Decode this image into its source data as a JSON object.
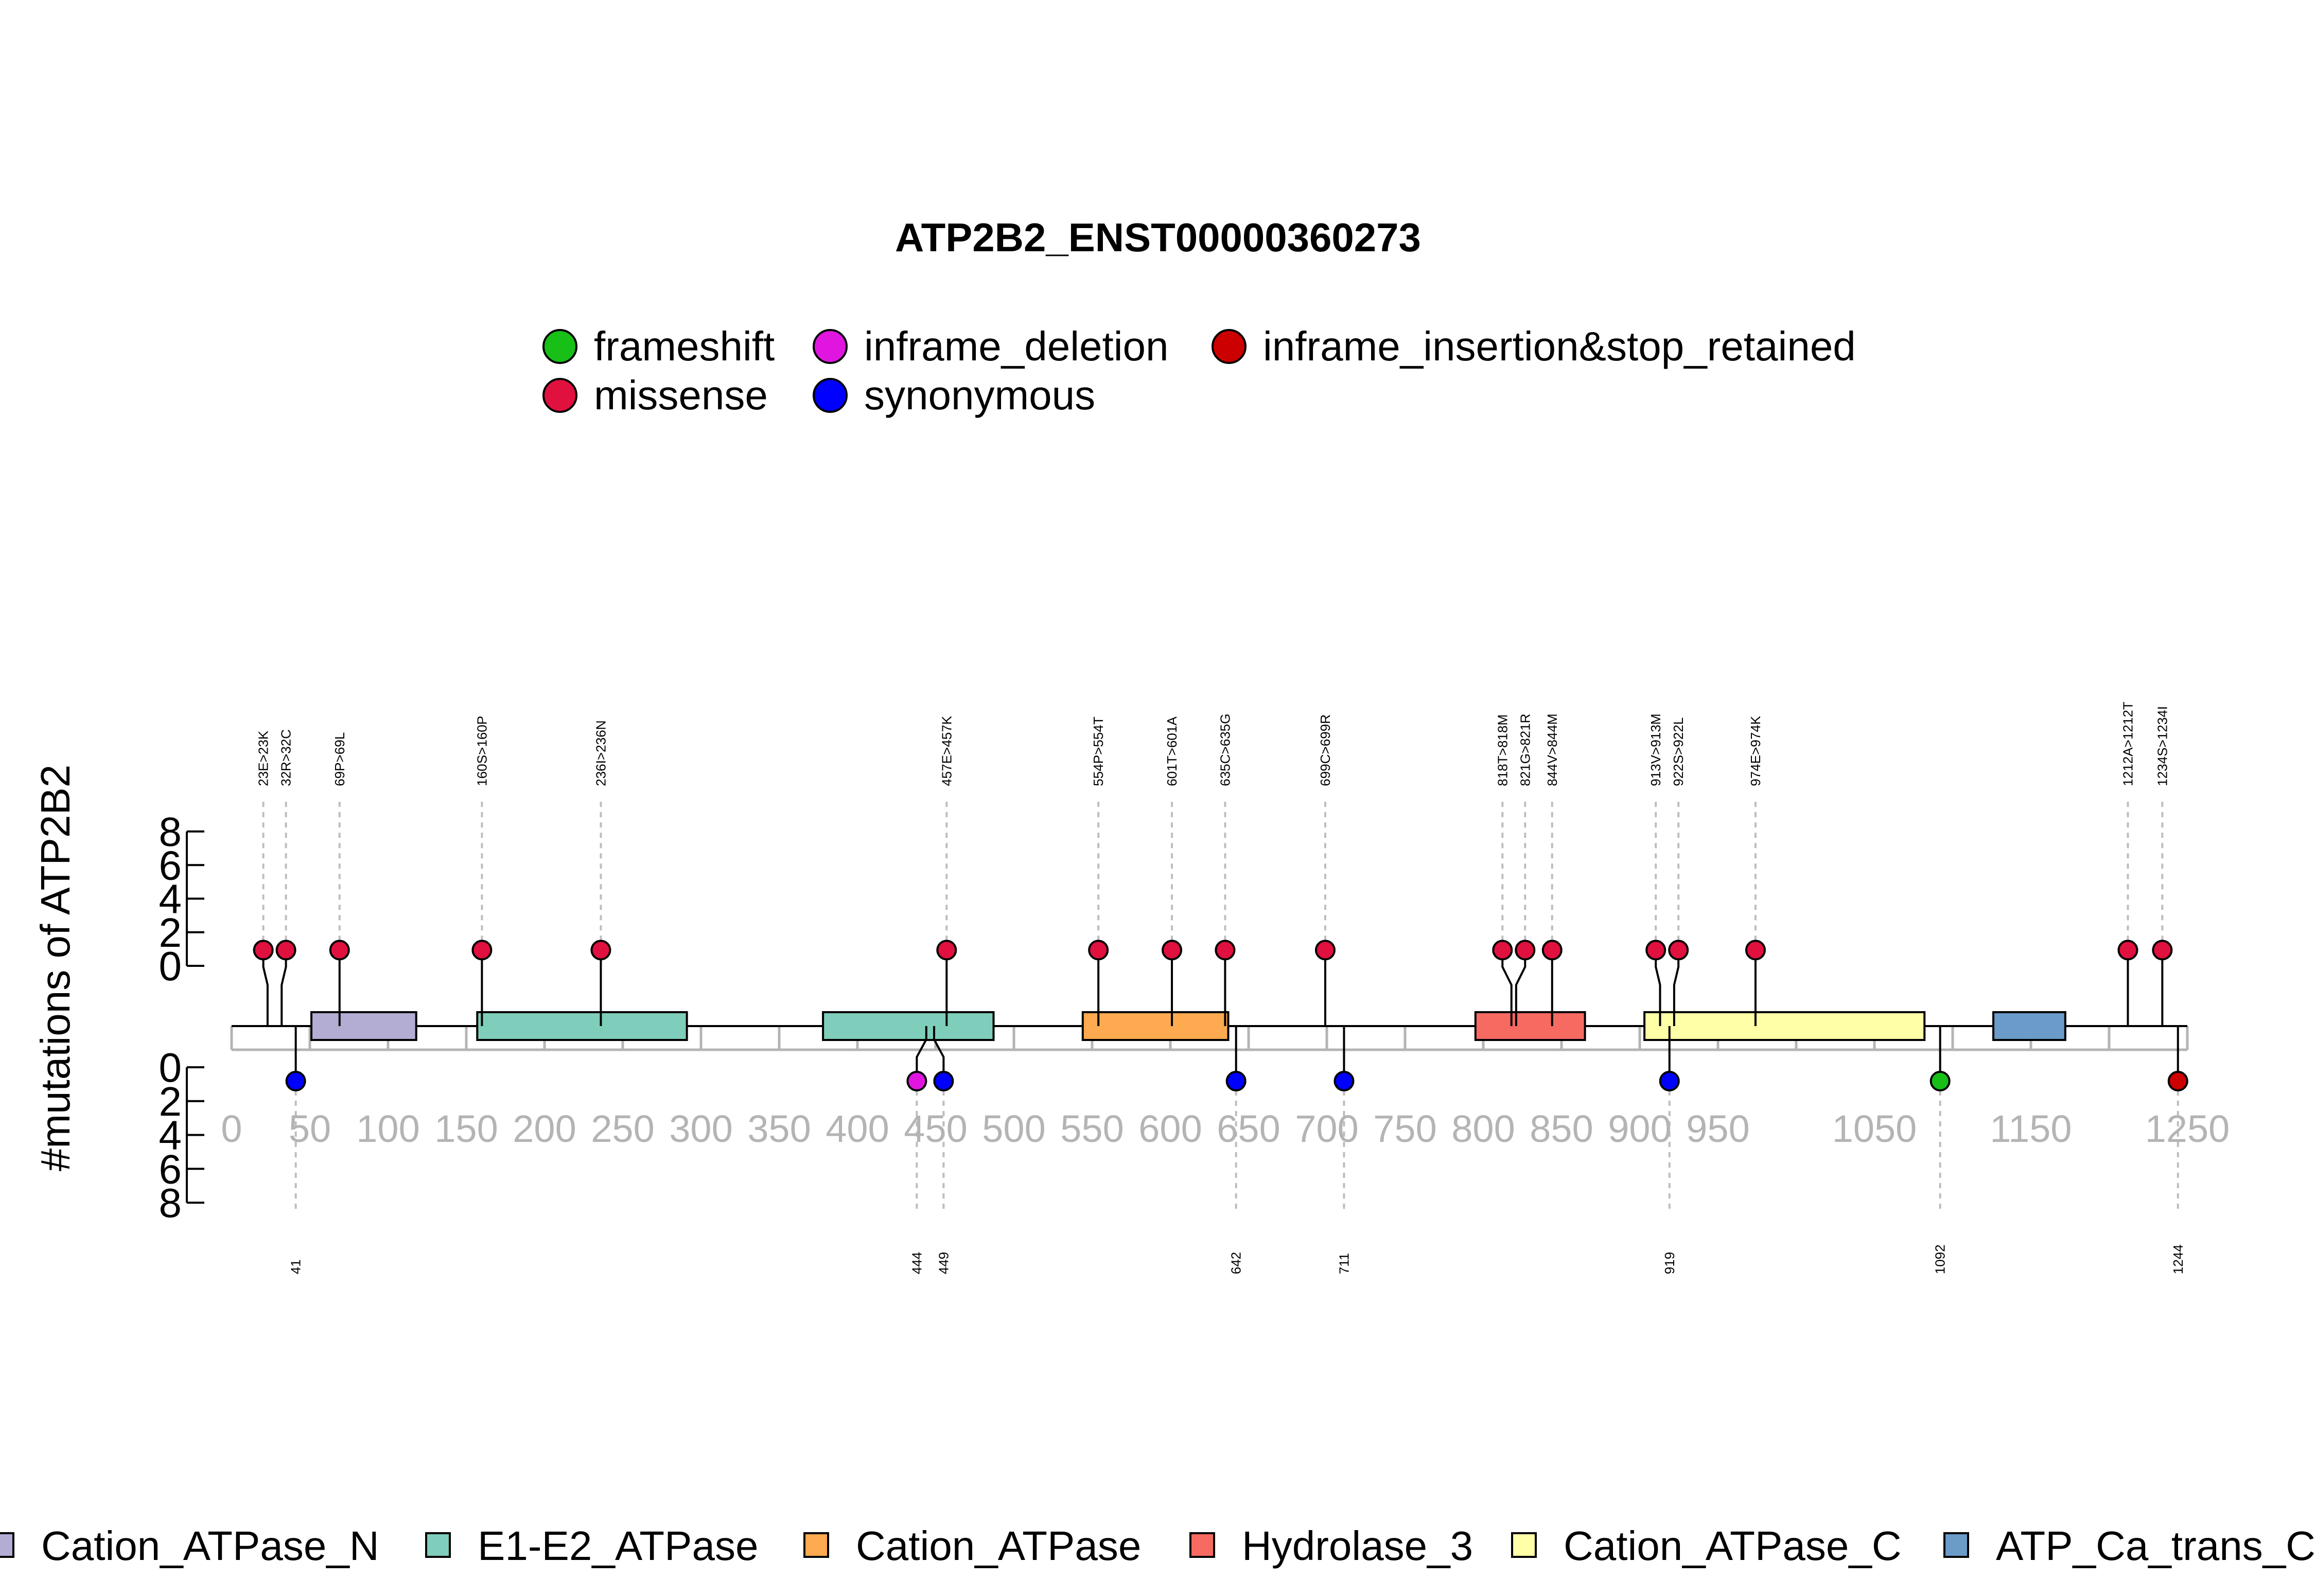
{
  "chart_data": {
    "type": "lollipop",
    "title": "ATP2B2_ENST00000360273",
    "ylabel": "#mutations of ATP2B2",
    "protein_length": 1250,
    "xlim": [
      0,
      1250
    ],
    "x_ticks": [
      0,
      50,
      100,
      150,
      200,
      250,
      300,
      350,
      400,
      450,
      500,
      550,
      600,
      650,
      700,
      750,
      800,
      850,
      900,
      950,
      1050,
      1150,
      1250
    ],
    "y_ticks_top": [
      0,
      2,
      4,
      6,
      8
    ],
    "y_ticks_bottom": [
      0,
      2,
      4,
      6,
      8
    ],
    "mutation_types": [
      {
        "name": "frameshift",
        "color": "#17BF17"
      },
      {
        "name": "inframe_deletion",
        "color": "#E016E0"
      },
      {
        "name": "inframe_insertion&stop_retained",
        "color": "#CC0000"
      },
      {
        "name": "missense",
        "color": "#E0103F"
      },
      {
        "name": "synonymous",
        "color": "#0000FF"
      }
    ],
    "domains": [
      {
        "name": "Cation_ATPase_N",
        "start": 51,
        "end": 118,
        "color": "#B3ACD3"
      },
      {
        "name": "E1-E2_ATPase",
        "start": 157,
        "end": 291,
        "color": "#7FCDBB"
      },
      {
        "name": "E1-E2_ATPase",
        "start": 378,
        "end": 487,
        "color": "#7FCDBB"
      },
      {
        "name": "Cation_ATPase",
        "start": 544,
        "end": 637,
        "color": "#FDAA50"
      },
      {
        "name": "Hydrolase_3",
        "start": 795,
        "end": 865,
        "color": "#F66A62"
      },
      {
        "name": "Cation_ATPase_C",
        "start": 903,
        "end": 1082,
        "color": "#FFFFA8"
      },
      {
        "name": "ATP_Ca_trans_C",
        "start": 1126,
        "end": 1172,
        "color": "#6A9BC9"
      }
    ],
    "domain_legend": [
      "Cation_ATPase_N",
      "E1-E2_ATPase",
      "Cation_ATPase",
      "Hydrolase_3",
      "Cation_ATPase_C",
      "ATP_Ca_trans_C"
    ],
    "mutations_top": [
      {
        "label": "23E>23K",
        "pos": 23,
        "count": 1,
        "type": "missense"
      },
      {
        "label": "32R>32C",
        "pos": 32,
        "count": 1,
        "type": "missense"
      },
      {
        "label": "69P>69L",
        "pos": 69,
        "count": 1,
        "type": "missense"
      },
      {
        "label": "160S>160P",
        "pos": 160,
        "count": 1,
        "type": "missense"
      },
      {
        "label": "236I>236N",
        "pos": 236,
        "count": 1,
        "type": "missense"
      },
      {
        "label": "457E>457K",
        "pos": 457,
        "count": 1,
        "type": "missense"
      },
      {
        "label": "554P>554T",
        "pos": 554,
        "count": 1,
        "type": "missense"
      },
      {
        "label": "601T>601A",
        "pos": 601,
        "count": 1,
        "type": "missense"
      },
      {
        "label": "635C>635G",
        "pos": 635,
        "count": 1,
        "type": "missense"
      },
      {
        "label": "699C>699R",
        "pos": 699,
        "count": 1,
        "type": "missense"
      },
      {
        "label": "818T>818M",
        "pos": 818,
        "count": 1,
        "type": "missense"
      },
      {
        "label": "821G>821R",
        "pos": 821,
        "count": 1,
        "type": "missense"
      },
      {
        "label": "844V>844M",
        "pos": 844,
        "count": 1,
        "type": "missense"
      },
      {
        "label": "913V>913M",
        "pos": 913,
        "count": 1,
        "type": "missense"
      },
      {
        "label": "922S>922L",
        "pos": 922,
        "count": 1,
        "type": "missense"
      },
      {
        "label": "974E>974K",
        "pos": 974,
        "count": 1,
        "type": "missense"
      },
      {
        "label": "1212A>1212T",
        "pos": 1212,
        "count": 1,
        "type": "missense"
      },
      {
        "label": "1234S>1234I",
        "pos": 1234,
        "count": 1,
        "type": "missense"
      }
    ],
    "mutations_bottom": [
      {
        "label": "41",
        "pos": 41,
        "count": 1,
        "type": "synonymous"
      },
      {
        "label": "444",
        "pos": 444,
        "count": 1,
        "type": "inframe_deletion"
      },
      {
        "label": "449",
        "pos": 449,
        "count": 1,
        "type": "synonymous"
      },
      {
        "label": "642",
        "pos": 642,
        "count": 1,
        "type": "synonymous"
      },
      {
        "label": "711",
        "pos": 711,
        "count": 1,
        "type": "synonymous"
      },
      {
        "label": "919",
        "pos": 919,
        "count": 1,
        "type": "synonymous"
      },
      {
        "label": "1092",
        "pos": 1092,
        "count": 1,
        "type": "frameshift"
      },
      {
        "label": "1244",
        "pos": 1244,
        "count": 1,
        "type": "inframe_insertion&stop_retained"
      }
    ]
  }
}
